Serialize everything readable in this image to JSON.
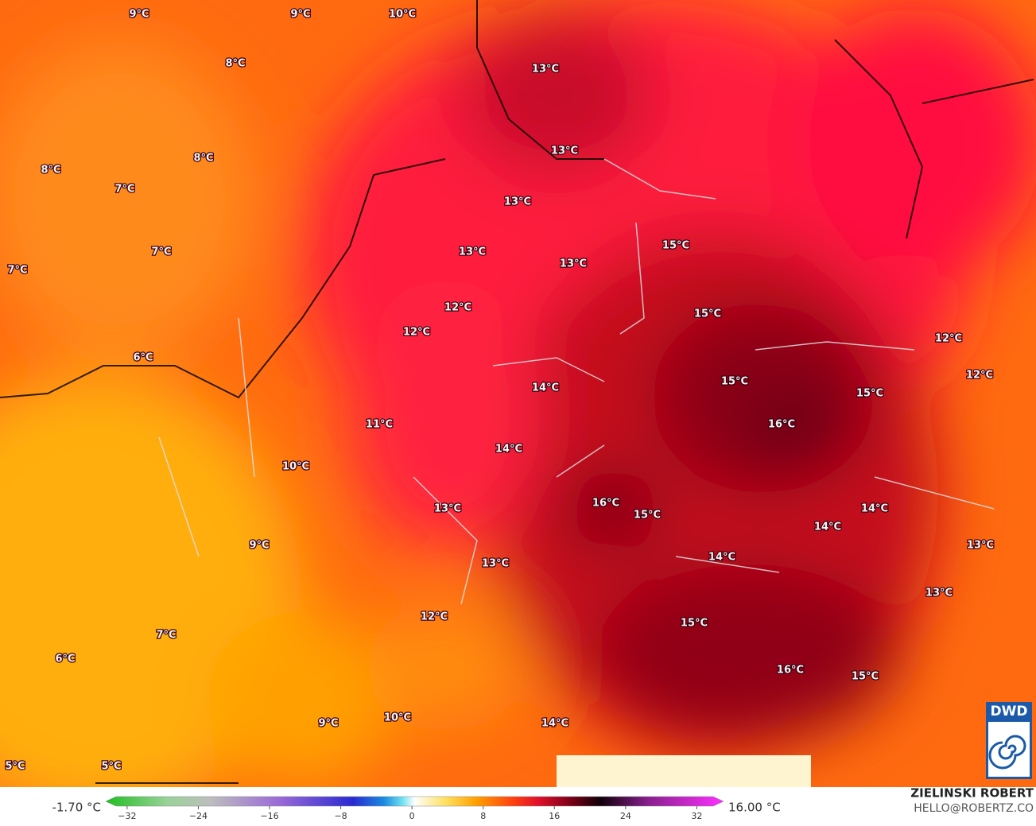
{
  "temperature_labels": [
    "9°C",
    "9°C",
    "10°C",
    "8°C",
    "13°C",
    "13°C",
    "8°C",
    "8°C",
    "7°C",
    "13°C",
    "15°C",
    "13°C",
    "13°C",
    "7°C",
    "7°C",
    "12°C",
    "15°C",
    "12°C",
    "12°C",
    "6°C",
    "15°C",
    "12°C",
    "14°C",
    "15°C",
    "16°C",
    "11°C",
    "14°C",
    "10°C",
    "16°C",
    "15°C",
    "13°C",
    "14°C",
    "14°C",
    "13°C",
    "9°C",
    "14°C",
    "13°C",
    "13°C",
    "12°C",
    "15°C",
    "7°C",
    "6°C",
    "16°C",
    "15°C",
    "9°C",
    "10°C",
    "14°C",
    "5°C",
    "5°C"
  ],
  "colorbar": {
    "min_label": "-1.70 °C",
    "max_label": "16.00 °C",
    "lim": [
      -34.4,
      35
    ],
    "ticks": [
      {
        "value": -32,
        "label": "−32"
      },
      {
        "value": -24,
        "label": "−24"
      },
      {
        "value": -16,
        "label": "−16"
      },
      {
        "value": -8,
        "label": "−8"
      },
      0,
      8,
      16,
      24,
      32
    ]
  },
  "credits": {
    "name": "ZIELINSKI ROBERT",
    "contact": "HELLO@ROBERTZ.CO"
  },
  "logo": "DWD"
}
